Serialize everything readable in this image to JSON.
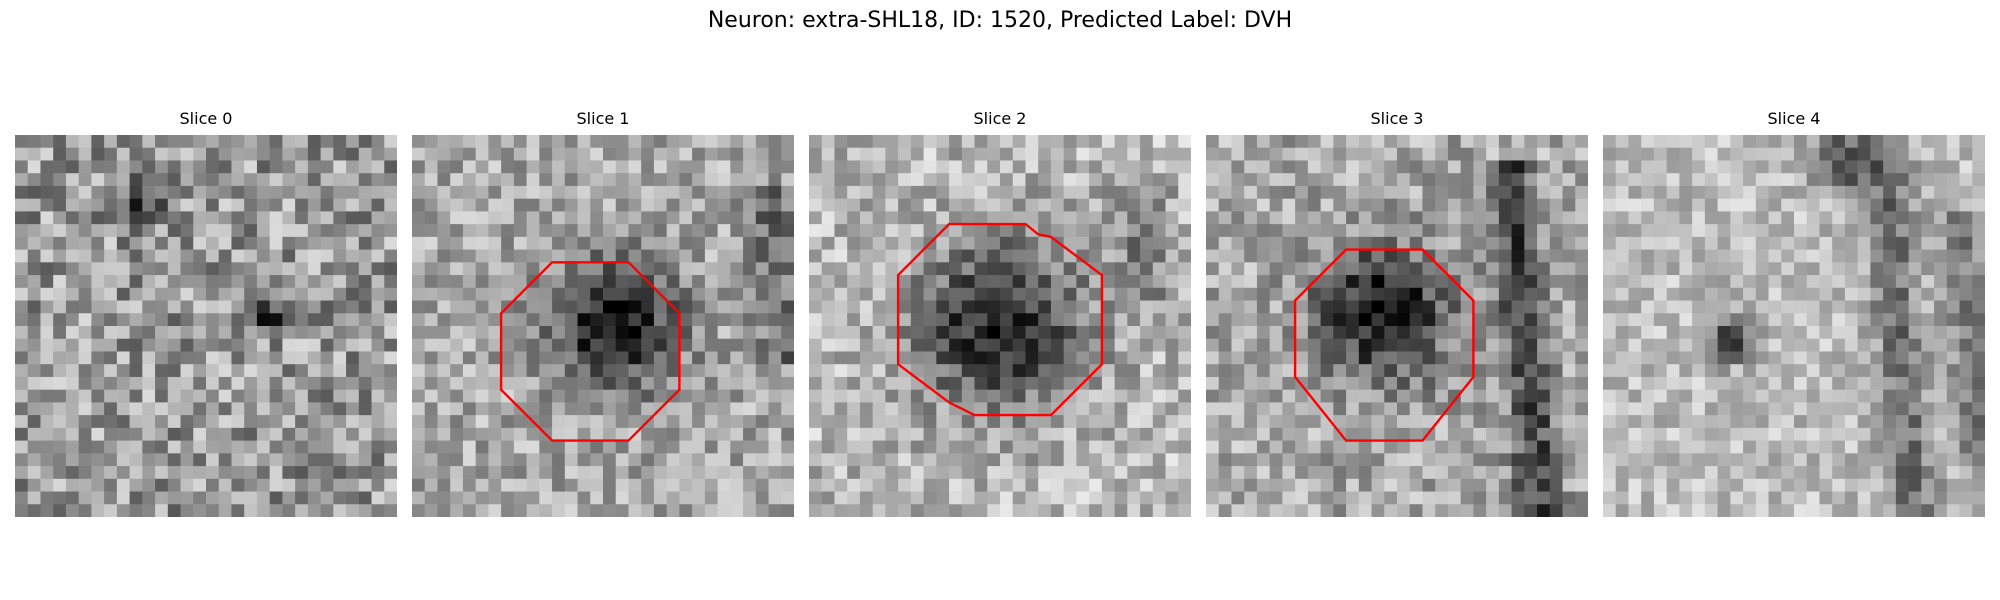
{
  "figure": {
    "title": "Neuron: extra-SHL18, ID: 1520, Predicted Label: DVH",
    "outline_color": "#ff0000",
    "panels": [
      {
        "title": "Slice 0",
        "has_outline": false
      },
      {
        "title": "Slice 1",
        "has_outline": true
      },
      {
        "title": "Slice 2",
        "has_outline": true
      },
      {
        "title": "Slice 3",
        "has_outline": true
      },
      {
        "title": "Slice 4",
        "has_outline": false
      }
    ]
  }
}
